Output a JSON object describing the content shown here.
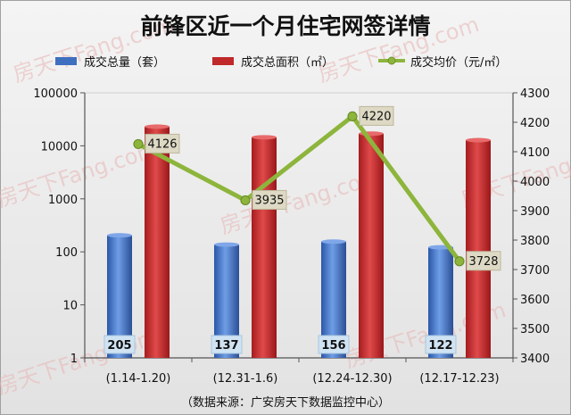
{
  "chart_data": {
    "type": "bar",
    "title": "前锋区近一个月住宅网签详情",
    "categories": [
      "(1.14-1.20)",
      "(12.31-1.6)",
      "(12.24-12.30)",
      "(12.17-12.23)"
    ],
    "series": [
      {
        "name": "成交总量（套）",
        "type": "bar",
        "axis": "left",
        "color": "#3f6fbf",
        "values": [
          205,
          137,
          156,
          122
        ]
      },
      {
        "name": "成交总面积（㎡）",
        "type": "bar",
        "axis": "left",
        "color": "#c0282a",
        "values": [
          23000,
          14500,
          17000,
          12800
        ]
      },
      {
        "name": "成交均价（元/㎡）",
        "type": "line",
        "axis": "right",
        "color": "#8db53c",
        "values": [
          4126,
          3935,
          4220,
          3728
        ]
      }
    ],
    "data_labels": {
      "count": [
        "205",
        "137",
        "156",
        "122"
      ],
      "price": [
        "4126",
        "3935",
        "4220",
        "3728"
      ]
    },
    "y_left": {
      "scale": "log",
      "ylim": [
        1,
        100000
      ],
      "ticks": [
        "1",
        "10",
        "100",
        "1000",
        "10000",
        "100000"
      ]
    },
    "y_right": {
      "scale": "linear",
      "ylim": [
        3400,
        4300
      ],
      "ticks": [
        "3400",
        "3500",
        "3600",
        "3700",
        "3800",
        "3900",
        "4000",
        "4100",
        "4200",
        "4300"
      ]
    },
    "legend_position": "top",
    "grid": false,
    "source": "（数据来源：广安房天下数据监控中心）",
    "watermark": "房天下Fang.com"
  }
}
